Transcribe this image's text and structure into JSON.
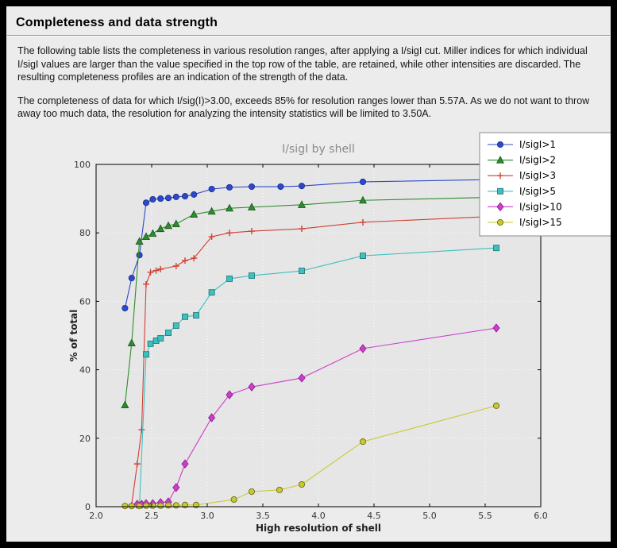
{
  "header": {
    "title": "Completeness and data strength"
  },
  "body_text": {
    "paragraph1": "The following table lists the completeness in various resolution ranges, after applying a I/sigI cut. Miller indices for which individual I/sigI values are larger than the value specified in the top row of the table, are retained, while other intensities are discarded. The resulting completeness profiles are an indication of the strength of the data.",
    "paragraph2": "The completeness of data for which I/sig(I)>3.00, exceeds  85% for resolution ranges lower than 5.57A. As we do not want to throw away too much data, the resolution for analyzing the intensity statistics will be limited to 3.50A."
  },
  "chart_data": {
    "type": "line",
    "title": "I/sigI by shell",
    "xlabel": "High resolution of shell",
    "ylabel": "% of total",
    "xlim": [
      2.0,
      6.0
    ],
    "ylim": [
      0,
      100
    ],
    "xticks": [
      2.0,
      2.5,
      3.0,
      3.5,
      4.0,
      4.5,
      5.0,
      5.5,
      6.0
    ],
    "xtick_labels": [
      "2.0",
      "2.5",
      "3.0",
      "3.5",
      "4.0",
      "4.5",
      "5.0",
      "5.5",
      "6.0"
    ],
    "yticks": [
      0,
      20,
      40,
      60,
      80,
      100
    ],
    "ytick_labels": [
      "0",
      "20",
      "40",
      "60",
      "80",
      "100"
    ],
    "grid": "dotted-white",
    "plot_bg": "#e6e6e6",
    "page_bg": "#ececec",
    "legend_position": "upper right",
    "series": [
      {
        "name": "I/sigI>1",
        "color": "#2d49c8",
        "edge": "#1c2f96",
        "marker": "circle",
        "x": [
          2.26,
          2.32,
          2.39,
          2.45,
          2.51,
          2.58,
          2.65,
          2.72,
          2.8,
          2.88,
          3.04,
          3.2,
          3.4,
          3.66,
          3.85,
          4.4,
          5.97
        ],
        "y": [
          58.0,
          66.8,
          73.5,
          88.8,
          89.8,
          90.0,
          90.2,
          90.5,
          90.7,
          91.2,
          92.8,
          93.3,
          93.5,
          93.5,
          93.7,
          94.9,
          95.8
        ]
      },
      {
        "name": "I/sigI>2",
        "color": "#2f8b2f",
        "edge": "#1f5c1f",
        "marker": "triangle",
        "x": [
          2.26,
          2.32,
          2.39,
          2.45,
          2.51,
          2.58,
          2.65,
          2.72,
          2.88,
          3.04,
          3.2,
          3.4,
          3.85,
          4.4,
          5.97
        ],
        "y": [
          29.7,
          47.8,
          77.5,
          78.9,
          79.8,
          81.2,
          82.1,
          82.6,
          85.4,
          86.3,
          87.2,
          87.5,
          88.2,
          89.5,
          90.7
        ]
      },
      {
        "name": "I/sigI>3",
        "color": "#cf3f34",
        "edge": "#cf3f34",
        "marker": "plus",
        "x": [
          2.32,
          2.37,
          2.41,
          2.45,
          2.49,
          2.54,
          2.58,
          2.72,
          2.8,
          2.88,
          3.04,
          3.2,
          3.4,
          3.85,
          4.4,
          5.97
        ],
        "y": [
          0.5,
          12.5,
          22.5,
          65.0,
          68.5,
          69.0,
          69.4,
          70.3,
          71.9,
          72.6,
          78.9,
          80.0,
          80.5,
          81.2,
          83.1,
          85.4
        ]
      },
      {
        "name": "I/sigI>5",
        "color": "#3fbfbf",
        "edge": "#1f7d7d",
        "marker": "square",
        "x": [
          2.39,
          2.45,
          2.49,
          2.54,
          2.58,
          2.65,
          2.72,
          2.8,
          2.9,
          3.04,
          3.2,
          3.4,
          3.85,
          4.4,
          5.6
        ],
        "y": [
          0.5,
          44.5,
          47.6,
          48.5,
          49.2,
          50.8,
          52.9,
          55.5,
          55.9,
          62.6,
          66.6,
          67.5,
          68.9,
          73.3,
          75.6
        ]
      },
      {
        "name": "I/sigI>10",
        "color": "#cc3fcc",
        "edge": "#8f1f8f",
        "marker": "diamond",
        "x": [
          2.37,
          2.41,
          2.45,
          2.51,
          2.58,
          2.65,
          2.72,
          2.8,
          3.04,
          3.2,
          3.4,
          3.85,
          4.4,
          5.6
        ],
        "y": [
          0.7,
          0.7,
          0.9,
          0.9,
          1.2,
          1.4,
          5.6,
          12.5,
          26.0,
          32.7,
          35.0,
          37.6,
          46.2,
          52.2
        ]
      },
      {
        "name": "I/sigI>15",
        "color": "#c9c932",
        "edge": "#6b6b1a",
        "marker": "circle",
        "x": [
          2.26,
          2.32,
          2.39,
          2.45,
          2.51,
          2.58,
          2.65,
          2.72,
          2.8,
          2.9,
          3.24,
          3.4,
          3.65,
          3.85,
          4.4,
          5.6
        ],
        "y": [
          0.2,
          0.2,
          0.2,
          0.3,
          0.3,
          0.3,
          0.4,
          0.4,
          0.5,
          0.5,
          2.1,
          4.4,
          4.9,
          6.5,
          19.0,
          29.5
        ]
      }
    ]
  }
}
